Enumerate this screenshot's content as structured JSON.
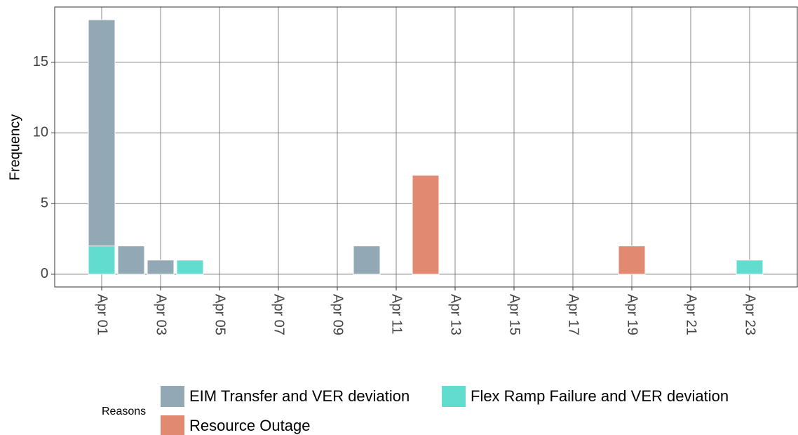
{
  "chart_data": {
    "type": "bar",
    "stacked": true,
    "y_label": "Frequency",
    "categories": [
      "Apr 01",
      null,
      "Apr 03",
      null,
      "Apr 05",
      null,
      "Apr 07",
      null,
      "Apr 09",
      null,
      "Apr 11",
      null,
      "Apr 13",
      null,
      "Apr 15",
      null,
      "Apr 17",
      null,
      "Apr 19",
      null,
      "Apr 21",
      null,
      "Apr 23"
    ],
    "series": [
      {
        "name": "EIM Transfer and VER deviation",
        "color": "#92a8b4",
        "values": [
          16,
          2,
          1,
          null,
          null,
          null,
          null,
          null,
          null,
          2,
          null,
          null,
          null,
          null,
          null,
          null,
          null,
          null,
          null,
          null,
          null,
          null,
          null
        ]
      },
      {
        "name": "Flex Ramp Failure and VER deviation",
        "color": "#62dccf",
        "values": [
          2,
          null,
          null,
          1,
          null,
          null,
          null,
          null,
          null,
          null,
          null,
          null,
          null,
          null,
          null,
          null,
          null,
          null,
          null,
          null,
          null,
          null,
          1
        ]
      },
      {
        "name": "Resource Outage",
        "color": "#e28a71",
        "values": [
          null,
          null,
          null,
          null,
          null,
          null,
          null,
          null,
          null,
          null,
          null,
          7,
          null,
          null,
          null,
          null,
          null,
          null,
          2,
          null,
          null,
          null,
          null
        ]
      }
    ],
    "legend_title": "Reasons",
    "legend": "bottom",
    "ylim": [
      -0.9,
      18.9
    ],
    "yticks": [
      0,
      5,
      10,
      15
    ],
    "grid": true
  }
}
